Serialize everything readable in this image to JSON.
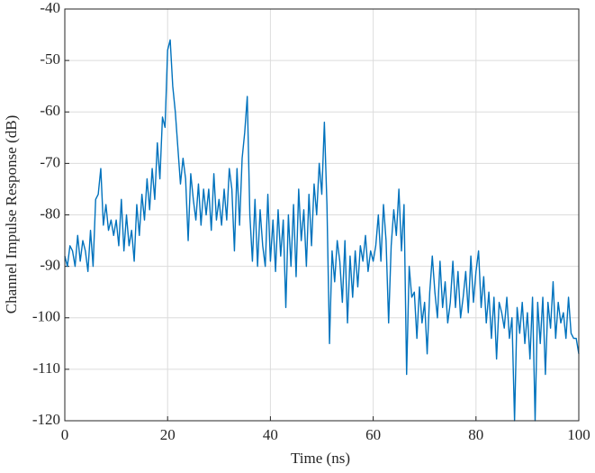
{
  "chart_data": {
    "type": "line",
    "xlabel": "Time (ns)",
    "ylabel": "Channel Impulse Response (dB)",
    "xlim": [
      0,
      100
    ],
    "xticks": [
      0,
      20,
      40,
      60,
      80,
      100
    ],
    "ylim": [
      -120,
      -40
    ],
    "yticks": [
      -120,
      -110,
      -100,
      -90,
      -80,
      -70,
      -60,
      -50,
      -40
    ],
    "grid": true,
    "x": [
      0,
      0.5,
      1,
      1.5,
      2,
      2.5,
      3,
      3.5,
      4,
      4.5,
      5,
      5.5,
      6,
      6.5,
      7,
      7.5,
      8,
      8.5,
      9,
      9.5,
      10,
      10.5,
      11,
      11.5,
      12,
      12.5,
      13,
      13.5,
      14,
      14.5,
      15,
      15.5,
      16,
      16.5,
      17,
      17.5,
      18,
      18.5,
      19,
      19.5,
      20,
      20.5,
      21,
      21.5,
      22,
      22.5,
      23,
      23.5,
      24,
      24.5,
      25,
      25.5,
      26,
      26.5,
      27,
      27.5,
      28,
      28.5,
      29,
      29.5,
      30,
      30.5,
      31,
      31.5,
      32,
      32.5,
      33,
      33.5,
      34,
      34.5,
      35,
      35.5,
      36,
      36.5,
      37,
      37.5,
      38,
      38.5,
      39,
      39.5,
      40,
      40.5,
      41,
      41.5,
      42,
      42.5,
      43,
      43.5,
      44,
      44.5,
      45,
      45.5,
      46,
      46.5,
      47,
      47.5,
      48,
      48.5,
      49,
      49.5,
      50,
      50.5,
      51,
      51.5,
      52,
      52.5,
      53,
      53.5,
      54,
      54.5,
      55,
      55.5,
      56,
      56.5,
      57,
      57.5,
      58,
      58.5,
      59,
      59.5,
      60,
      60.5,
      61,
      61.5,
      62,
      62.5,
      63,
      63.5,
      64,
      64.5,
      65,
      65.5,
      66,
      66.5,
      67,
      67.5,
      68,
      68.5,
      69,
      69.5,
      70,
      70.5,
      71,
      71.5,
      72,
      72.5,
      73,
      73.5,
      74,
      74.5,
      75,
      75.5,
      76,
      76.5,
      77,
      77.5,
      78,
      78.5,
      79,
      79.5,
      80,
      80.5,
      81,
      81.5,
      82,
      82.5,
      83,
      83.5,
      84,
      84.5,
      85,
      85.5,
      86,
      86.5,
      87,
      87.5,
      88,
      88.5,
      89,
      89.5,
      90,
      90.5,
      91,
      91.5,
      92,
      92.5,
      93,
      93.5,
      94,
      94.5,
      95,
      95.5,
      96,
      96.5,
      97,
      97.5,
      98,
      98.5,
      99,
      99.5,
      100
    ],
    "series": [
      {
        "color": "#0072bd",
        "values": [
          -88,
          -90,
          -86,
          -87,
          -90,
          -84,
          -89,
          -85,
          -87,
          -91,
          -83,
          -90,
          -77,
          -76,
          -71,
          -82,
          -78,
          -83,
          -81,
          -84,
          -81,
          -86,
          -77,
          -87,
          -80,
          -86,
          -83,
          -89,
          -78,
          -84,
          -76,
          -81,
          -73,
          -79,
          -71,
          -77,
          -66,
          -73,
          -61,
          -63,
          -48,
          -46,
          -55,
          -60,
          -67,
          -74,
          -69,
          -73,
          -85,
          -72,
          -77,
          -81,
          -74,
          -82,
          -75,
          -80,
          -75,
          -83,
          -72,
          -81,
          -77,
          -82,
          -75,
          -81,
          -71,
          -75,
          -87,
          -71,
          -82,
          -69,
          -64,
          -57,
          -80,
          -89,
          -77,
          -90,
          -79,
          -86,
          -90,
          -76,
          -89,
          -81,
          -91,
          -79,
          -88,
          -81,
          -98,
          -80,
          -90,
          -78,
          -92,
          -75,
          -85,
          -79,
          -90,
          -76,
          -86,
          -74,
          -80,
          -70,
          -76,
          -62,
          -78,
          -105,
          -87,
          -93,
          -85,
          -89,
          -97,
          -85,
          -101,
          -88,
          -96,
          -87,
          -94,
          -86,
          -89,
          -84,
          -91,
          -87,
          -89,
          -86,
          -80,
          -89,
          -78,
          -85,
          -101,
          -86,
          -79,
          -84,
          -75,
          -87,
          -78,
          -111,
          -90,
          -96,
          -95,
          -104,
          -94,
          -101,
          -97,
          -107,
          -95,
          -88,
          -95,
          -100,
          -89,
          -98,
          -93,
          -101,
          -97,
          -89,
          -98,
          -91,
          -100,
          -96,
          -91,
          -99,
          -88,
          -97,
          -91,
          -87,
          -98,
          -92,
          -101,
          -95,
          -104,
          -96,
          -108,
          -97,
          -99,
          -102,
          -96,
          -104,
          -100,
          -120,
          -98,
          -103,
          -97,
          -105,
          -99,
          -108,
          -96,
          -120,
          -97,
          -105,
          -96,
          -111,
          -97,
          -102,
          -93,
          -104,
          -97,
          -101,
          -99,
          -104,
          -96,
          -103,
          -104,
          -104,
          -107
        ]
      }
    ]
  }
}
